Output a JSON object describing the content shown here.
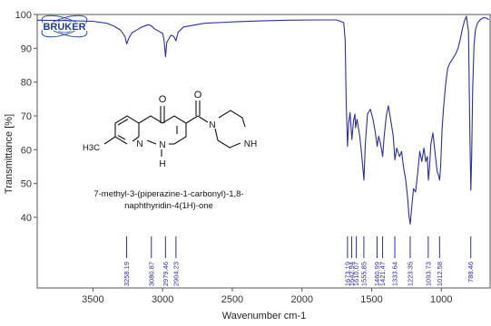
{
  "logo_text": "BRUKER",
  "chart_data": {
    "type": "line",
    "title": "",
    "xlabel": "Wavenumber cm-1",
    "ylabel": "Transmittance [%]",
    "xlim": [
      3900,
      650
    ],
    "ylim": [
      28,
      100
    ],
    "x_reversed": true,
    "x_ticks": [
      "3500",
      "3000",
      "2500",
      "2000",
      "1500",
      "1000"
    ],
    "y_ticks": [
      "40",
      "50",
      "60",
      "70",
      "80",
      "90",
      "100"
    ],
    "series_color": "#2a2f9e",
    "grid": false,
    "series": [
      {
        "x": [
          3900,
          3700,
          3500,
          3400,
          3350,
          3300,
          3270,
          3258,
          3245,
          3220,
          3150,
          3100,
          3080,
          3060,
          3000,
          2990,
          2979,
          2970,
          2940,
          2920,
          2904,
          2890,
          2850,
          2700,
          2500,
          2300,
          2100,
          1900,
          1750,
          1700,
          1690,
          1683,
          1673,
          1665,
          1655,
          1642,
          1630,
          1620,
          1615,
          1605,
          1585,
          1570,
          1555,
          1545,
          1530,
          1510,
          1490,
          1475,
          1460,
          1450,
          1440,
          1428,
          1421,
          1410,
          1395,
          1380,
          1360,
          1345,
          1333,
          1320,
          1300,
          1285,
          1270,
          1255,
          1240,
          1232,
          1223,
          1215,
          1200,
          1185,
          1170,
          1155,
          1140,
          1125,
          1112,
          1100,
          1093,
          1085,
          1075,
          1060,
          1045,
          1030,
          1020,
          1012,
          1005,
          995,
          985,
          970,
          955,
          940,
          925,
          910,
          895,
          880,
          865,
          850,
          835,
          820,
          805,
          795,
          788,
          782,
          775,
          765,
          755,
          740,
          720,
          700,
          680,
          660
        ],
        "y": [
          98.3,
          98.2,
          98.0,
          97.4,
          96.6,
          95.3,
          93.5,
          91.3,
          92.8,
          94.6,
          96.3,
          97.0,
          96.6,
          95.8,
          94.4,
          92.5,
          87.5,
          91.8,
          93.9,
          93.5,
          92.2,
          94.7,
          96.3,
          97.4,
          97.8,
          98.1,
          98.3,
          98.4,
          98.4,
          97.6,
          92.5,
          75.0,
          61.0,
          68.0,
          71.0,
          63.0,
          68.5,
          70.5,
          66.5,
          69.0,
          64.0,
          58.0,
          51.0,
          62.0,
          70.5,
          72.0,
          69.0,
          65.5,
          61.0,
          64.0,
          62.5,
          60.0,
          58.0,
          64.0,
          70.0,
          73.0,
          68.0,
          64.0,
          57.0,
          60.5,
          58.0,
          59.5,
          54.5,
          51.0,
          45.0,
          40.5,
          38.0,
          42.0,
          48.5,
          47.5,
          53.0,
          59.5,
          56.5,
          60.5,
          56.5,
          58.0,
          51.0,
          54.5,
          61.5,
          65.0,
          59.0,
          53.5,
          52.5,
          51.0,
          55.0,
          65.5,
          72.0,
          79.0,
          84.0,
          85.5,
          86.5,
          87.5,
          88.5,
          90.0,
          92.5,
          95.5,
          98.0,
          99.5,
          95.0,
          65.0,
          48.0,
          58.0,
          78.0,
          91.0,
          95.5,
          97.5,
          98.5,
          99.0,
          99.0,
          98.5
        ]
      }
    ],
    "peak_labels": [
      "3258.19",
      "3080.87",
      "2979.46",
      "2904.23",
      "1673.19",
      "1642.94",
      "1610.07",
      "1555.85",
      "1460.99",
      "1421.47",
      "1333.64",
      "1223.35",
      "1093.73",
      "1012.58",
      "788.46"
    ],
    "peak_positions": [
      3258.19,
      3080.87,
      2979.46,
      2904.23,
      1673.19,
      1642.94,
      1610.07,
      1555.85,
      1460.99,
      1421.47,
      1333.64,
      1223.35,
      1093.73,
      1012.58,
      788.46
    ]
  },
  "molecule": {
    "oxo": "O",
    "carbonyl_o": "O",
    "ring_n1": "N",
    "ring_n8": "N",
    "nh_h": "H",
    "pip_n": "N",
    "pip_nh": "NH",
    "methyl": "H3C",
    "name_line1": "7-methyl-3-(piperazine-1-carbonyl)-1,8-",
    "name_line2": "naphthyridin-4(1H)-one"
  }
}
